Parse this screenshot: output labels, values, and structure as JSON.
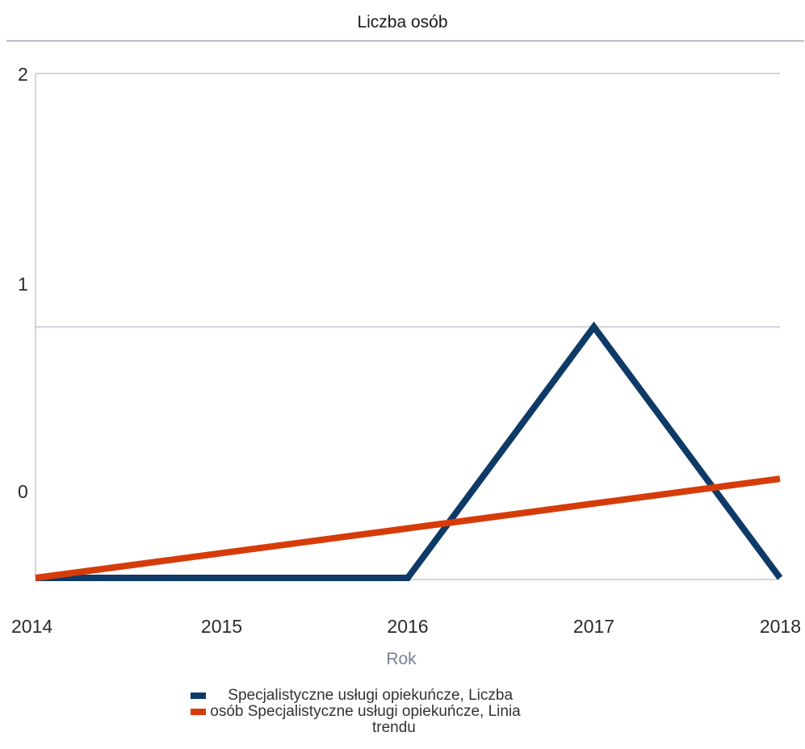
{
  "chart_data": {
    "type": "line",
    "title": "Liczba osób",
    "xlabel": "Rok",
    "ylabel": "",
    "x": [
      "2014",
      "2015",
      "2016",
      "2017",
      "2018"
    ],
    "y_ticks": [
      "0",
      "1",
      "2"
    ],
    "ylim": [
      0,
      2
    ],
    "grid": true,
    "legend_position": "bottom",
    "series": [
      {
        "name": "Specjalistyczne usługi opiekuńcze, Liczba osób",
        "values": [
          0,
          0,
          0,
          1,
          0
        ],
        "color": "#0e3a68"
      },
      {
        "name": "Specjalistyczne usługi opiekuńcze, Linia trendu",
        "values": [
          0,
          0.1,
          0.2,
          0.3,
          0.4
        ],
        "color": "#d63c09"
      }
    ]
  },
  "legend": {
    "line1": "Specjalistyczne usługi opiekuńcze, Liczba",
    "line2": "osób Specjalistyczne usługi opiekuńcze, Linia",
    "line3": "trendu"
  }
}
